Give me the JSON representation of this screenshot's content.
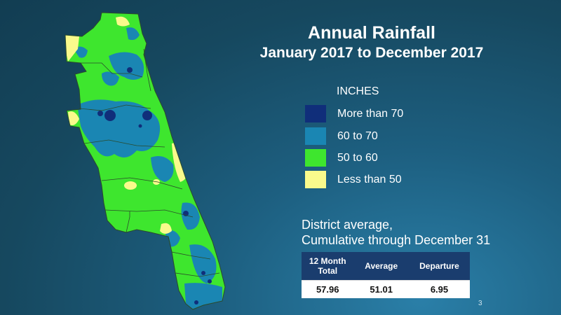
{
  "title": {
    "line1": "Annual Rainfall",
    "line2": "January 2017 to December 2017"
  },
  "legend": {
    "heading": "INCHES",
    "items": [
      {
        "label": "More than 70",
        "color": "#102e7a"
      },
      {
        "label": "60 to 70",
        "color": "#1a86b3"
      },
      {
        "label": "50 to 60",
        "color": "#3ee62e"
      },
      {
        "label": "Less than 50",
        "color": "#fafa8c"
      }
    ]
  },
  "district_note": {
    "line1": "District average,",
    "line2": "Cumulative through December 31"
  },
  "table": {
    "headers": [
      "12 Month Total",
      "Average",
      "Departure"
    ],
    "values": [
      "57.96",
      "51.01",
      "6.95"
    ]
  },
  "page_number": "3",
  "map": {
    "map_colors": {
      "above_70": "#102e7a",
      "from_60_to_70": "#1a86b3",
      "from_50_to_60": "#3ee62e",
      "below_50": "#fafa8c",
      "boundary": "#2b4a2b"
    }
  }
}
